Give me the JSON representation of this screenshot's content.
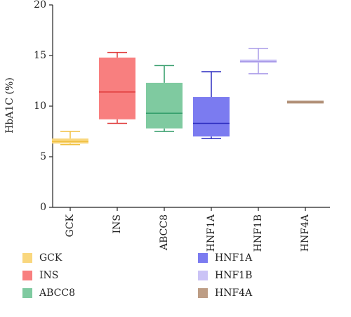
{
  "chart_data": {
    "type": "box",
    "y_label": "HbA1C (%)",
    "categories": [
      "GCK",
      "INS",
      "ABCC8",
      "HNF1A",
      "HNF1B",
      "HNF4A"
    ],
    "ylim": [
      0,
      20
    ],
    "yticks": [
      0,
      5,
      10,
      15,
      20
    ],
    "series": [
      {
        "name": "GCK",
        "color": "#f9d77e",
        "line_color": "#f0c040",
        "min": 6.2,
        "q1": 6.3,
        "median": 6.5,
        "q3": 6.8,
        "max": 7.5
      },
      {
        "name": "INS",
        "color": "#f87f7f",
        "line_color": "#e03c3c",
        "min": 8.3,
        "q1": 8.7,
        "median": 11.4,
        "q3": 14.8,
        "max": 15.3
      },
      {
        "name": "ABCC8",
        "color": "#7fcaa0",
        "line_color": "#2e9a66",
        "min": 7.5,
        "q1": 7.8,
        "median": 9.3,
        "q3": 12.3,
        "max": 14.0
      },
      {
        "name": "HNF1A",
        "color": "#7b7bf0",
        "line_color": "#2c2cc0",
        "min": 6.8,
        "q1": 7.0,
        "median": 8.3,
        "q3": 10.9,
        "max": 13.4
      },
      {
        "name": "HNF1B",
        "color": "#cbc3f6",
        "line_color": "#a99ae8",
        "min": 13.2,
        "q1": 14.3,
        "median": 14.4,
        "q3": 14.6,
        "max": 15.7
      },
      {
        "name": "HNF4A",
        "color": "#bd9d85",
        "line_color": "#b08f76",
        "min": 10.4,
        "q1": 10.4,
        "median": 10.4,
        "q3": 10.4,
        "max": 10.4
      }
    ]
  }
}
